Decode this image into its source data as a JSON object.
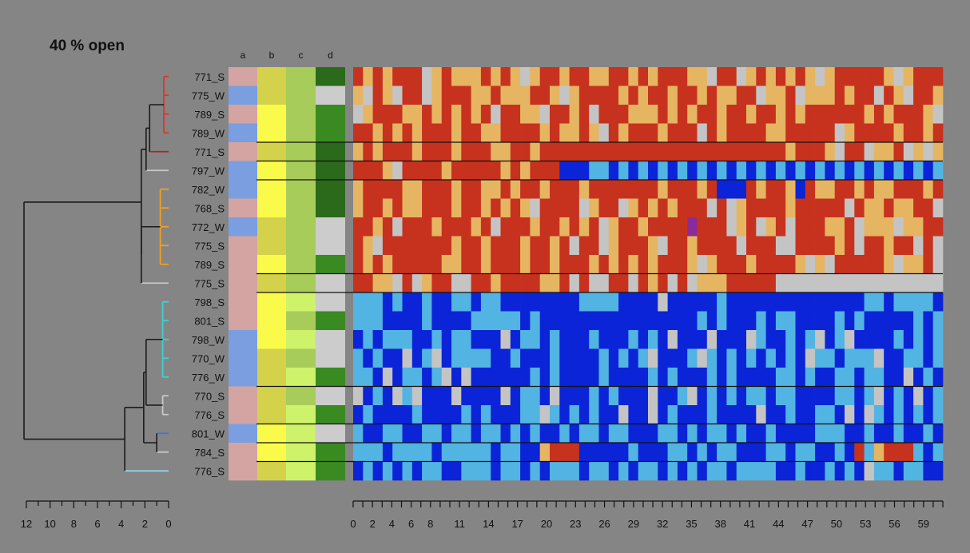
{
  "chart_data": {
    "type": "heatmap",
    "title": "40 % open",
    "annotation_columns": [
      "a",
      "b",
      "c",
      "d"
    ],
    "rows": [
      "771_S",
      "775_W",
      "789_S",
      "789_W",
      "771_S",
      "797_W",
      "782_W",
      "768_S",
      "772_W",
      "775_S",
      "789_S",
      "775_S",
      "798_S",
      "801_S",
      "798_W",
      "770_W",
      "776_W",
      "770_S",
      "776_S",
      "801_W",
      "784_S",
      "776_S"
    ],
    "dendrogram_axis": {
      "ticks": [
        12,
        10,
        8,
        6,
        4,
        2,
        0
      ],
      "range": [
        12,
        0
      ]
    },
    "x_axis": {
      "ticks": [
        0,
        2,
        4,
        6,
        8,
        11,
        14,
        17,
        20,
        23,
        26,
        29,
        32,
        35,
        38,
        41,
        44,
        47,
        50,
        53,
        56,
        59
      ],
      "range": [
        0,
        61
      ],
      "minor_step": 1
    },
    "clusters": [
      {
        "rows": [
          0,
          1,
          2,
          3
        ],
        "color": "#d63a2a",
        "height": 0.4
      },
      {
        "rows": [
          4
        ],
        "color": "#b52318",
        "height": 1.3
      },
      {
        "rows": [
          5
        ],
        "color": "#c8c8c8",
        "height": 1.9
      },
      {
        "rows": [
          6,
          7,
          8,
          9,
          10
        ],
        "color": "#f2a020",
        "height": 0.7
      },
      {
        "rows": [
          11
        ],
        "color": "#c8c8c8",
        "height": 2.3
      },
      {
        "rows": [
          12,
          13,
          14,
          15,
          16
        ],
        "color": "#3cd2d2",
        "height": 0.5
      },
      {
        "rows": [
          17,
          18
        ],
        "color": "#c8c8c8",
        "height": 0.5
      },
      {
        "rows": [
          19
        ],
        "color": "#3a78d8",
        "height": 1.0
      },
      {
        "rows": [
          20
        ],
        "color": "#c8c8c8",
        "height": 1.0
      },
      {
        "rows": [
          21
        ],
        "color": "#8fd8ee",
        "height": 3.7
      }
    ],
    "group_separators_after_rows": [
      3,
      4,
      5,
      10,
      11,
      16,
      18,
      19,
      20
    ],
    "annotation_values": [
      [
        "pink",
        "khaki",
        "lime",
        "darkgreen"
      ],
      [
        "blue",
        "khaki",
        "lime",
        "lightgray"
      ],
      [
        "pink",
        "yellow",
        "lime",
        "green"
      ],
      [
        "blue",
        "yellow",
        "lime",
        "green"
      ],
      [
        "pink",
        "khaki",
        "lime",
        "darkgreen"
      ],
      [
        "blue",
        "yellow",
        "lime",
        "darkgreen"
      ],
      [
        "blue",
        "yellow",
        "lime",
        "darkgreen"
      ],
      [
        "pink",
        "yellow",
        "lime",
        "darkgreen"
      ],
      [
        "blue",
        "khaki",
        "lime",
        "lightgray"
      ],
      [
        "pink",
        "khaki",
        "lime",
        "lightgray"
      ],
      [
        "pink",
        "yellow",
        "lime",
        "green"
      ],
      [
        "pink",
        "khaki",
        "lime",
        "lightgray"
      ],
      [
        "pink",
        "yellow",
        "lightlime",
        "lightgray"
      ],
      [
        "pink",
        "yellow",
        "lime",
        "green"
      ],
      [
        "blue",
        "yellow",
        "lightlime",
        "lightgray"
      ],
      [
        "blue",
        "khaki",
        "lime",
        "lightgray"
      ],
      [
        "blue",
        "khaki",
        "lightlime",
        "green"
      ],
      [
        "pink",
        "khaki",
        "lime",
        "lightgray"
      ],
      [
        "pink",
        "khaki",
        "lightlime",
        "green"
      ],
      [
        "blue",
        "yellow",
        "lightlime",
        "lightgray"
      ],
      [
        "pink",
        "yellow",
        "lightlime",
        "green"
      ],
      [
        "pink",
        "khaki",
        "lightlime",
        "green"
      ]
    ],
    "annotation_colors": {
      "pink": "#d4a4a2",
      "blue": "#7a9ee0",
      "khaki": "#d4d24a",
      "yellow": "#fafa4a",
      "lime": "#a8cc5a",
      "lightlime": "#cef26a",
      "darkgreen": "#2a6a1a",
      "green": "#3a8a22",
      "lightgray": "#cccccc"
    },
    "cell_colors": {
      "0": "#c7321f",
      "1": "#e6b562",
      "2": "#c4c4c4",
      "3": "#0b24d8",
      "4": "#52b4e2",
      "5": "#8a2b9a"
    },
    "cells": [
      "010100021011101012100100110010100011200210101012100000121000",
      "120120021000110111001210000101001001011002110211101002012001",
      "210001101010102001120010200011101010010010010100000010100012",
      "001010100010011000010110120100010002010000110000021000010010",
      "101000100010001100100000000000000000000000001000120021102121",
      "000120000100000101000333443434343434343434343434343434343434",
      "100001100010011010010001000000010001033301001301100101100010",
      "100101100010010101200002100210101000202100001000002011011002",
      "001020001000102000100101021001000050002102102000110211121100",
      "012000000010010001001020021000120010000200022000010200100202",
      "010100000110010001001000101010100012100010000121200000121102",
      "001120210022001000011020220020102021110000022222222222222222",
      "444343343344344333333334444333323333343333333333333344344443",
      "444333343333444443433333333333333334343334344333343433333434",
      "343444334344333234434333433343432333233324334342342333343434",
      "434332342344443343334333343434233342434343434324434442334434",
      "443234434232333333434333343333434333434333344343344344332343",
      "234324233323333234432333434333233423434344344333344342343234",
      "343333433334343334424343433233234333433332334334432324343434",
      "433443344344344343433434434433344343443433433334443343343343",
      "444344443444443443310003333343334434344333443443343041000434",
      "343434344334443443434443443434434343443444433433434324434433"
    ]
  }
}
